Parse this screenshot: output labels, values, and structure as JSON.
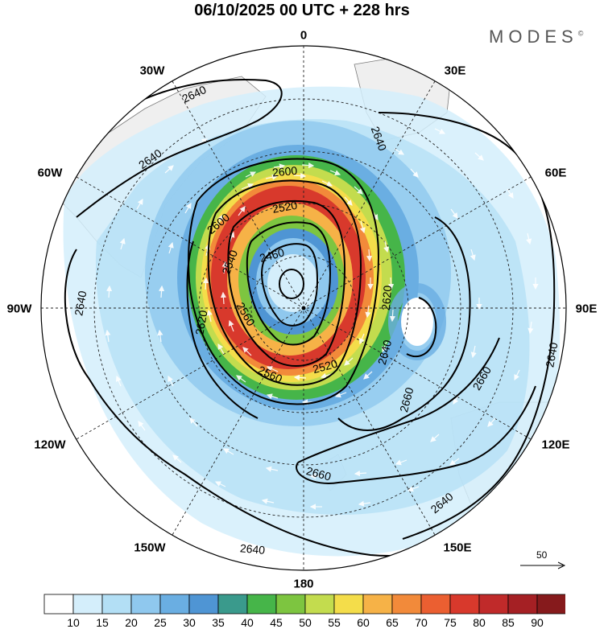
{
  "header": {
    "title": "06/10/2025  00 UTC  + 228 hrs",
    "logo": "MODES",
    "logo_mark": "©"
  },
  "map": {
    "projection": "south-polar-stereographic",
    "longitude_labels": [
      "0",
      "30E",
      "60E",
      "90E",
      "120E",
      "150E",
      "180",
      "150W",
      "120W",
      "90W",
      "60W",
      "30W"
    ],
    "contour_labels": [
      "2640",
      "2640",
      "2640",
      "2600",
      "2520",
      "2600",
      "2460",
      "2540",
      "2620",
      "2560",
      "2560",
      "2520",
      "2620",
      "2640",
      "2660",
      "2660",
      "2640",
      "2660",
      "2640",
      "2640",
      "2640"
    ],
    "wind_reference": {
      "value": "50"
    },
    "colors": {
      "land": "#f0f0f0",
      "coast": "#666666"
    }
  },
  "colorbar": {
    "levels": [
      "10",
      "15",
      "20",
      "25",
      "30",
      "35",
      "40",
      "45",
      "50",
      "55",
      "60",
      "65",
      "70",
      "75",
      "80",
      "85",
      "90"
    ],
    "colors": [
      "#ffffff",
      "#d4eefb",
      "#b3dff5",
      "#8fc8ee",
      "#6aaee2",
      "#4f95d4",
      "#3a9a8c",
      "#46b549",
      "#7dc540",
      "#c3dc4e",
      "#f4dd4a",
      "#f6b247",
      "#f28a3a",
      "#eb5f31",
      "#d8392c",
      "#c02a2a",
      "#a52024",
      "#861a1c"
    ]
  }
}
